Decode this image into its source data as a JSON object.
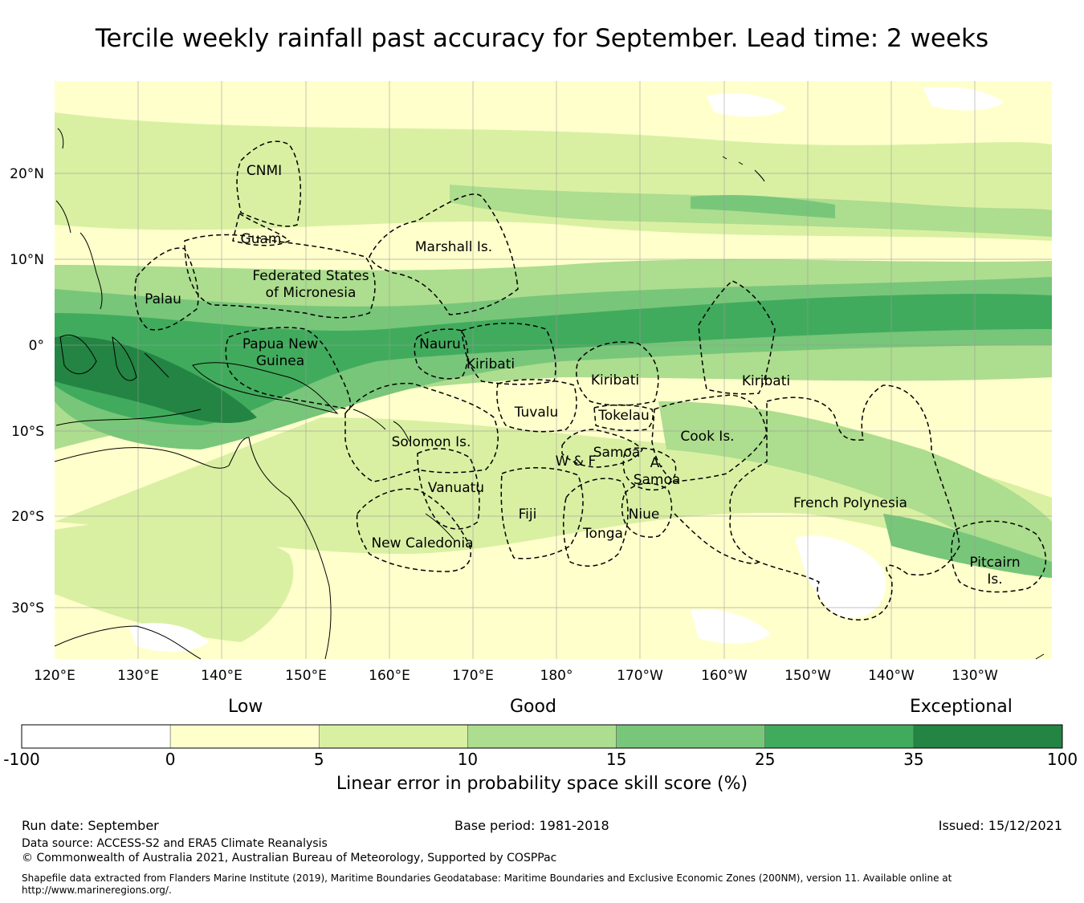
{
  "title": "Tercile weekly rainfall past accuracy for September. Lead time: 2 weeks",
  "map": {
    "lon_ticks": [
      "120°E",
      "130°E",
      "140°E",
      "150°E",
      "160°E",
      "170°E",
      "180°",
      "170°W",
      "160°W",
      "150°W",
      "140°W",
      "130°W"
    ],
    "lat_ticks": [
      "20°N",
      "10°N",
      "0°",
      "10°S",
      "20°S",
      "30°S"
    ],
    "regions": [
      {
        "name": "CNMI",
        "lines": [
          "CNMI"
        ]
      },
      {
        "name": "Guam",
        "lines": [
          "Guam"
        ]
      },
      {
        "name": "Marshall Is.",
        "lines": [
          "Marshall Is."
        ]
      },
      {
        "name": "Federated States of Micronesia",
        "lines": [
          "Federated States",
          "of Micronesia"
        ]
      },
      {
        "name": "Palau",
        "lines": [
          "Palau"
        ]
      },
      {
        "name": "Papua New Guinea",
        "lines": [
          "Papua New",
          "Guinea"
        ]
      },
      {
        "name": "Nauru",
        "lines": [
          "Nauru"
        ]
      },
      {
        "name": "Kiribati",
        "lines": [
          "Kiribati"
        ]
      },
      {
        "name": "Kiribati",
        "lines": [
          "Kiribati"
        ]
      },
      {
        "name": "Kiribati",
        "lines": [
          "Kiribati"
        ]
      },
      {
        "name": "Tuvalu",
        "lines": [
          "Tuvalu"
        ]
      },
      {
        "name": "Tokelau",
        "lines": [
          "Tokelau"
        ]
      },
      {
        "name": "Cook Is.",
        "lines": [
          "Cook Is."
        ]
      },
      {
        "name": "Solomon Is.",
        "lines": [
          "Solomon Is."
        ]
      },
      {
        "name": "Samoa",
        "lines": [
          "Samoa"
        ]
      },
      {
        "name": "W & F",
        "lines": [
          "W & F"
        ]
      },
      {
        "name": "A. Samoa",
        "lines": [
          "A.",
          "Samoa"
        ]
      },
      {
        "name": "Vanuatu",
        "lines": [
          "Vanuatu"
        ]
      },
      {
        "name": "Fiji",
        "lines": [
          "Fiji"
        ]
      },
      {
        "name": "Niue",
        "lines": [
          "Niue"
        ]
      },
      {
        "name": "Tonga",
        "lines": [
          "Tonga"
        ]
      },
      {
        "name": "French Polynesia",
        "lines": [
          "French Polynesia"
        ]
      },
      {
        "name": "New Caledonia",
        "lines": [
          "New Caledonia"
        ]
      },
      {
        "name": "Pitcairn Is.",
        "lines": [
          "Pitcairn",
          "Is."
        ]
      }
    ]
  },
  "legend": {
    "category_low": "Low",
    "category_good": "Good",
    "category_exceptional": "Exceptional",
    "bins": [
      {
        "from": "-100",
        "to": "0",
        "color": "#ffffff"
      },
      {
        "from": "0",
        "to": "5",
        "color": "#ffffcc"
      },
      {
        "from": "5",
        "to": "10",
        "color": "#d9f0a3"
      },
      {
        "from": "10",
        "to": "15",
        "color": "#addd8e"
      },
      {
        "from": "15",
        "to": "25",
        "color": "#78c679"
      },
      {
        "from": "25",
        "to": "35",
        "color": "#41ab5d"
      },
      {
        "from": "35",
        "to": "100",
        "color": "#238443"
      }
    ],
    "ticks": [
      "-100",
      "0",
      "5",
      "10",
      "15",
      "25",
      "35",
      "100"
    ],
    "label": "Linear error in probability space skill score (%)"
  },
  "footer": {
    "run_date": "Run date: September",
    "base_period": "Base period: 1981-2018",
    "issued": "Issued: 15/12/2021",
    "data_source": "Data source: ACCESS-S2 and ERA5 Climate Reanalysis",
    "copyright": "© Commonwealth of Australia 2021, Australian Bureau of Meteorology, Supported by COSPPac",
    "shapefile_line1": "Shapefile data extracted from Flanders Marine Institute (2019), Maritime Boundaries Geodatabase: Maritime Boundaries and Exclusive Economic Zones (200NM), version 11. Available online at",
    "shapefile_line2": "http://www.marineregions.org/."
  }
}
